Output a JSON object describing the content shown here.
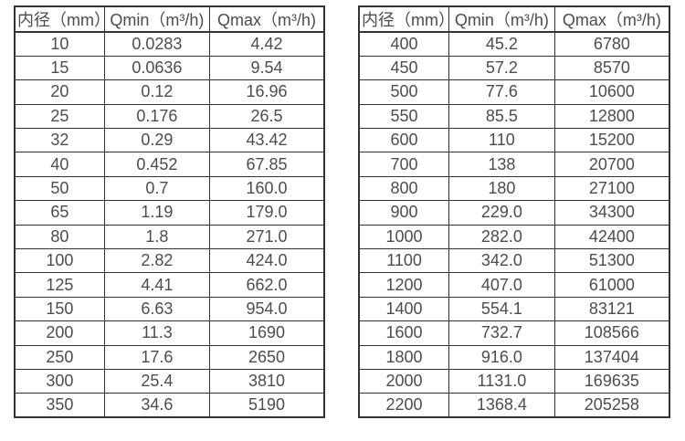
{
  "styles": {
    "border_color": "#333333",
    "text_color": "#4d4d4d",
    "background_color": "#ffffff"
  },
  "chart_data": [
    {
      "type": "table",
      "title": "",
      "columns": [
        "内径（mm）",
        "Qmin（m³/h)",
        "Qmax（m³/h)"
      ],
      "rows": [
        [
          "10",
          "0.0283",
          "4.42"
        ],
        [
          "15",
          "0.0636",
          "9.54"
        ],
        [
          "20",
          "0.12",
          "16.96"
        ],
        [
          "25",
          "0.176",
          "26.5"
        ],
        [
          "32",
          "0.29",
          "43.42"
        ],
        [
          "40",
          "0.452",
          "67.85"
        ],
        [
          "50",
          "0.7",
          "160.0"
        ],
        [
          "65",
          "1.19",
          "179.0"
        ],
        [
          "80",
          "1.8",
          "271.0"
        ],
        [
          "100",
          "2.82",
          "424.0"
        ],
        [
          "125",
          "4.41",
          "662.0"
        ],
        [
          "150",
          "6.63",
          "954.0"
        ],
        [
          "200",
          "11.3",
          "1690"
        ],
        [
          "250",
          "17.6",
          "2650"
        ],
        [
          "300",
          "25.4",
          "3810"
        ],
        [
          "350",
          "34.6",
          "5190"
        ]
      ]
    },
    {
      "type": "table",
      "title": "",
      "columns": [
        "内径（mm）",
        "Qmin（m³/h)",
        "Qmax（m³/h)"
      ],
      "rows": [
        [
          "400",
          "45.2",
          "6780"
        ],
        [
          "450",
          "57.2",
          "8570"
        ],
        [
          "500",
          "77.6",
          "10600"
        ],
        [
          "550",
          "85.5",
          "12800"
        ],
        [
          "600",
          "110",
          "15200"
        ],
        [
          "700",
          "138",
          "20700"
        ],
        [
          "800",
          "180",
          "27100"
        ],
        [
          "900",
          "229.0",
          "34300"
        ],
        [
          "1000",
          "282.0",
          "42400"
        ],
        [
          "1100",
          "342.0",
          "51300"
        ],
        [
          "1200",
          "407.0",
          "61000"
        ],
        [
          "1400",
          "554.1",
          "83121"
        ],
        [
          "1600",
          "732.7",
          "108566"
        ],
        [
          "1800",
          "916.0",
          "137404"
        ],
        [
          "2000",
          "1131.0",
          "169635"
        ],
        [
          "2200",
          "1368.4",
          "205258"
        ]
      ]
    }
  ]
}
